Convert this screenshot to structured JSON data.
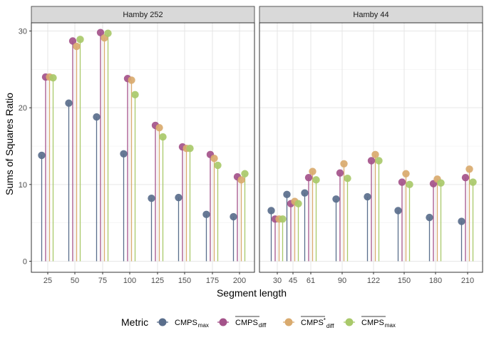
{
  "chart_data": {
    "type": "scatter",
    "style": "lollipop",
    "ylabel": "Sums of Squares Ratio",
    "xlabel": "Segment length",
    "ylim": [
      0,
      31
    ],
    "yticks": [
      0,
      10,
      20,
      30
    ],
    "grid": true,
    "legend": {
      "title": "Metric",
      "placement": "bottom",
      "entries": [
        {
          "base": "CMPS",
          "sub": "max",
          "overline": false,
          "star": false,
          "color": "#5a6e8c"
        },
        {
          "base": "CMPS",
          "sub": "diff",
          "overline": true,
          "star": false,
          "color": "#a4538a"
        },
        {
          "base": "CMPS",
          "sub": "diff",
          "overline": true,
          "star": true,
          "color": "#d9aa6e"
        },
        {
          "base": "CMPS",
          "sub": "max",
          "overline": true,
          "star": false,
          "color": "#a9c96a"
        }
      ]
    },
    "panels": [
      {
        "title": "Hamby 252",
        "x_tick_labels": [
          "25",
          "50",
          "75",
          "100",
          "125",
          "150",
          "175",
          "200"
        ],
        "series": [
          {
            "name": "CMPS_max",
            "values": [
              13.8,
              20.6,
              18.8,
              14.0,
              8.2,
              8.3,
              6.1,
              5.8
            ]
          },
          {
            "name": "overline CMPS_diff",
            "values": [
              24.0,
              28.7,
              29.8,
              23.8,
              17.7,
              14.9,
              13.9,
              11.0
            ]
          },
          {
            "name": "overline CMPS*_diff",
            "values": [
              24.0,
              28.0,
              29.1,
              23.6,
              17.4,
              14.7,
              13.4,
              10.6
            ]
          },
          {
            "name": "overline CMPS_max",
            "values": [
              23.9,
              28.9,
              29.7,
              21.7,
              16.2,
              14.7,
              12.5,
              11.4
            ]
          }
        ]
      },
      {
        "title": "Hamby 44",
        "x_tick_labels": [
          "30",
          "45",
          "61",
          "90",
          "122",
          "150",
          "180",
          "210"
        ],
        "series": [
          {
            "name": "CMPS_max",
            "values": [
              6.6,
              8.7,
              8.9,
              8.1,
              8.4,
              6.6,
              5.7,
              5.2
            ]
          },
          {
            "name": "overline CMPS_diff",
            "values": [
              5.5,
              7.5,
              10.9,
              11.5,
              13.1,
              10.3,
              10.1,
              10.9
            ]
          },
          {
            "name": "overline CMPS*_diff",
            "values": [
              5.5,
              7.8,
              11.7,
              12.7,
              13.9,
              11.4,
              10.7,
              12.0
            ]
          },
          {
            "name": "overline CMPS_max",
            "values": [
              5.5,
              7.5,
              10.6,
              10.8,
              13.1,
              10.0,
              10.2,
              10.3
            ]
          }
        ]
      }
    ]
  }
}
